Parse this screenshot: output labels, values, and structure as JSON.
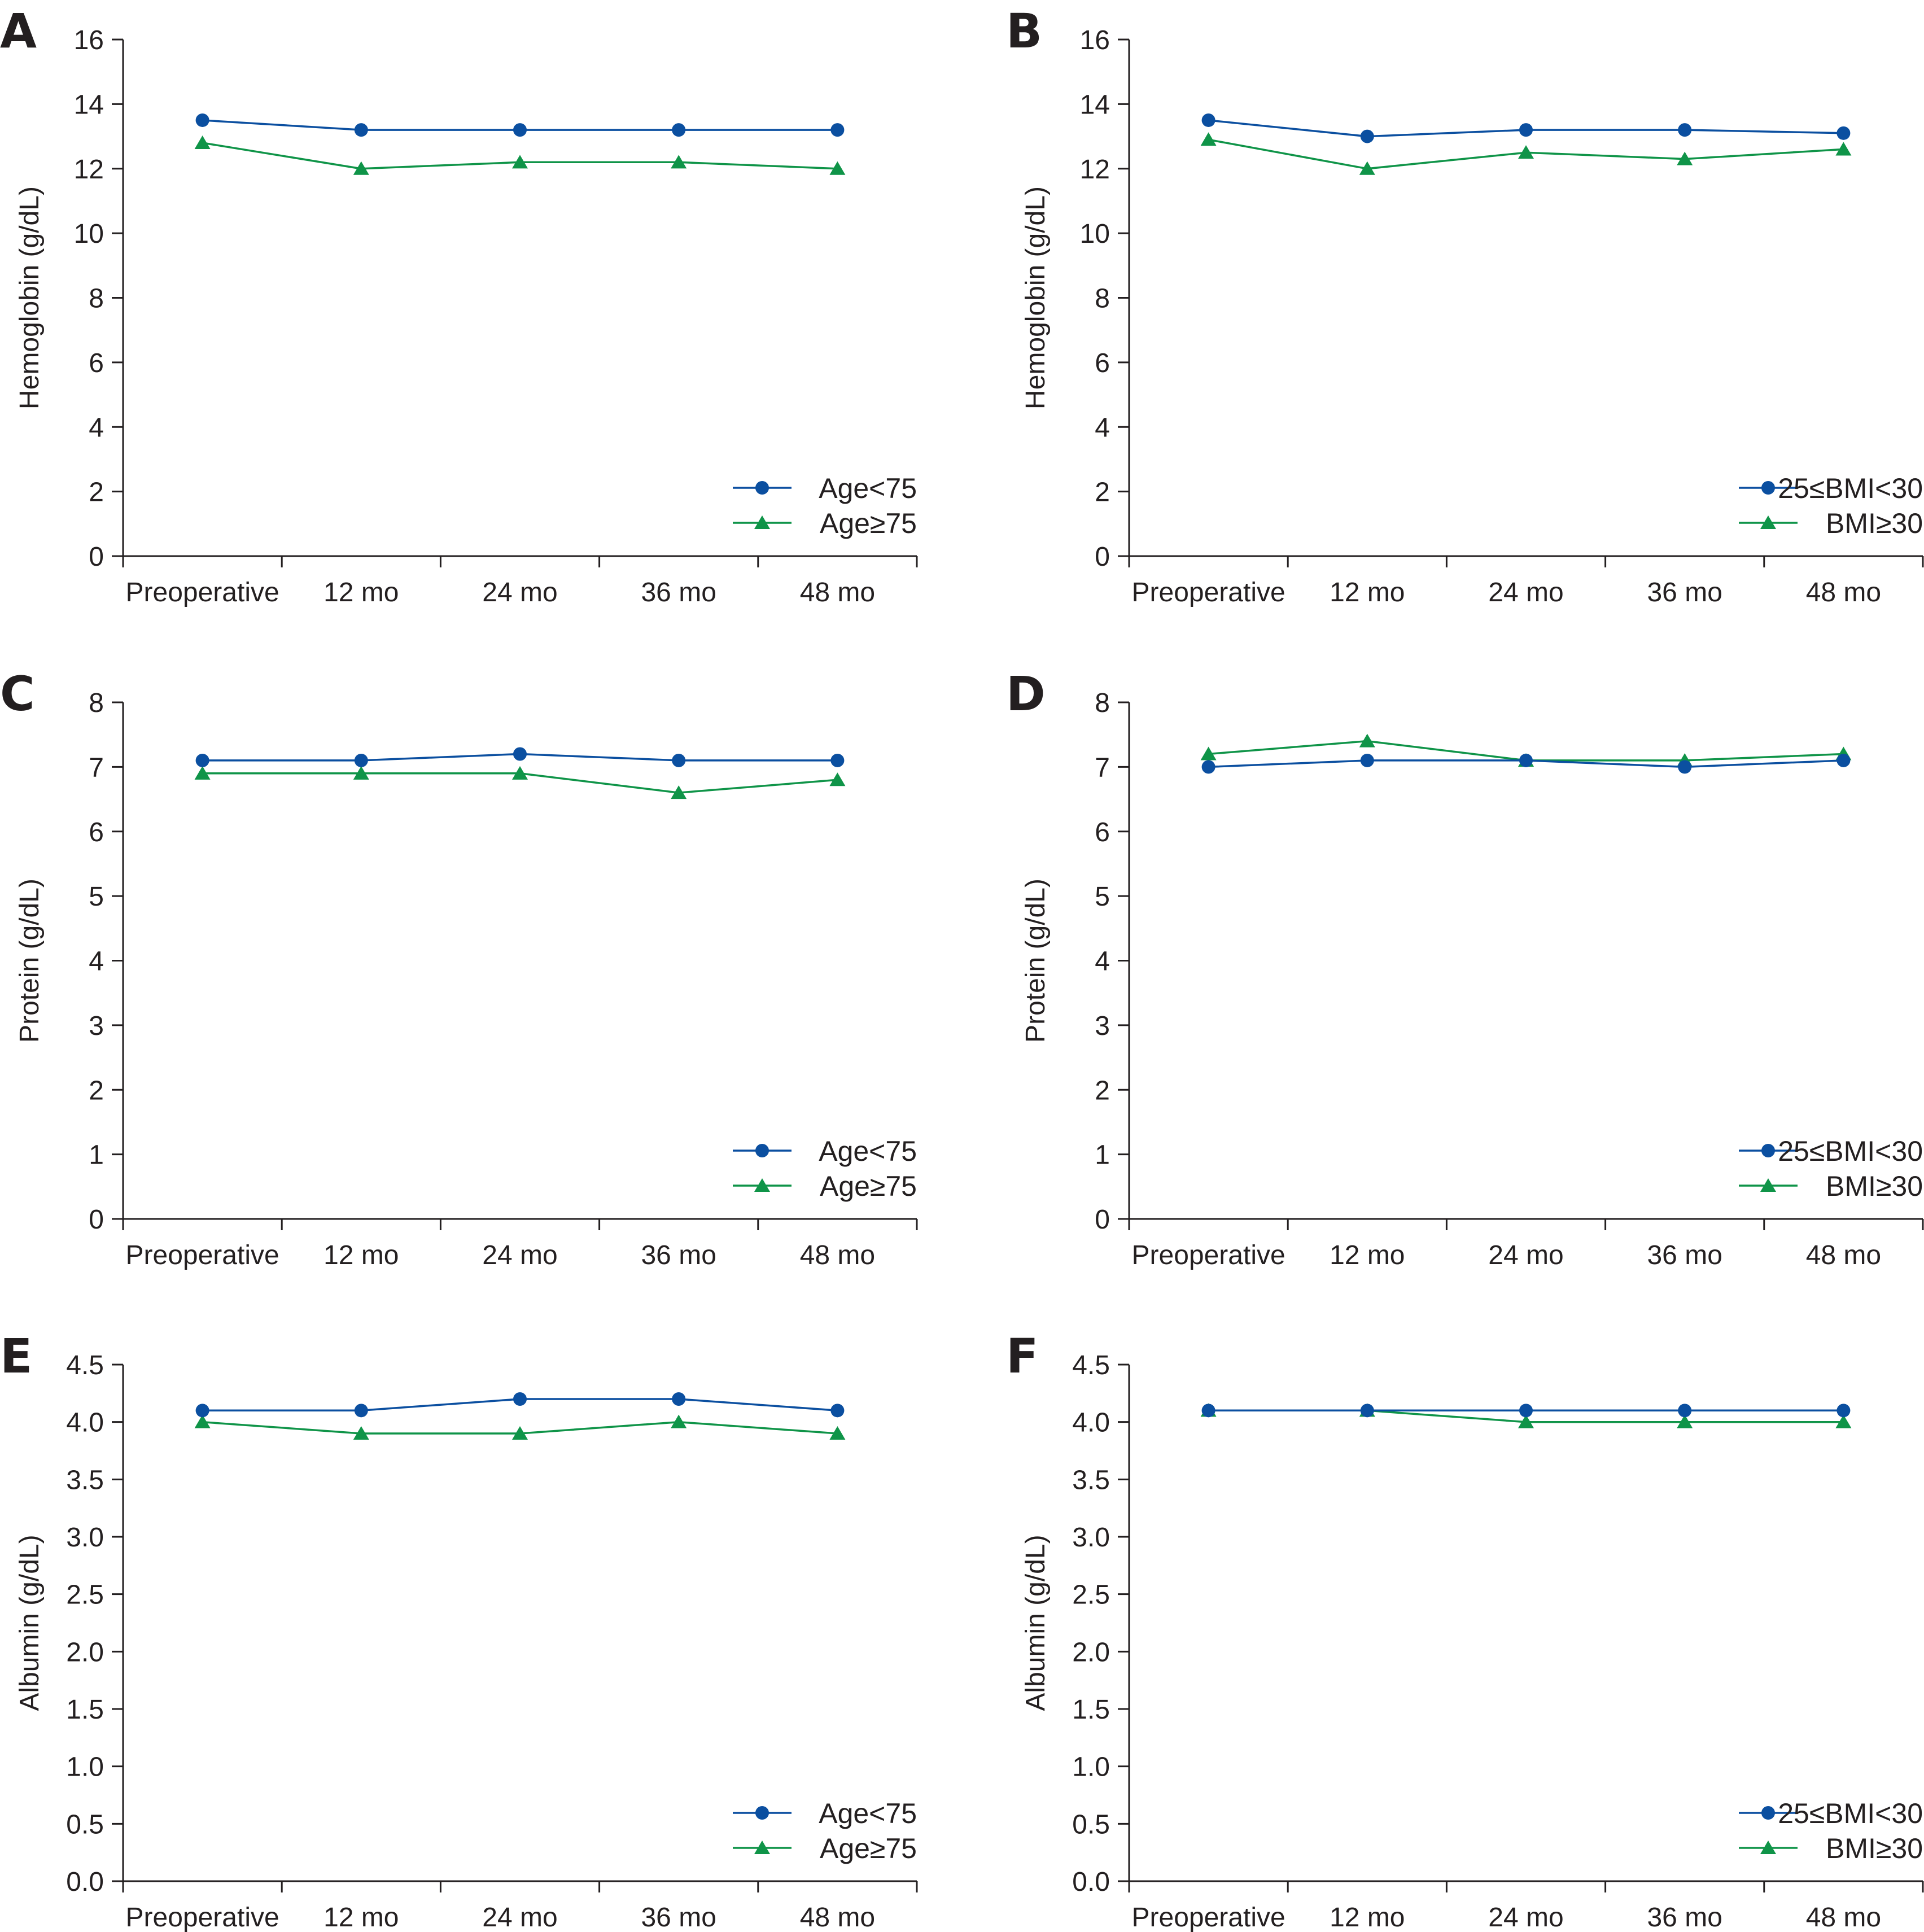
{
  "colors": {
    "series1": "#0b4fa0",
    "series2": "#0f9448",
    "axis": "#231f20"
  },
  "chart_data": [
    {
      "panel": "A",
      "type": "line",
      "categories": [
        "Preoperative",
        "12 mo",
        "24 mo",
        "36 mo",
        "48 mo"
      ],
      "ylabel": "Hemoglobin (g/dL)",
      "ylim": [
        0,
        16
      ],
      "yticks": [
        0,
        2,
        4,
        6,
        8,
        10,
        12,
        14,
        16
      ],
      "series": [
        {
          "name": "Age<75",
          "marker": "circle",
          "values": [
            13.5,
            13.2,
            13.2,
            13.2,
            13.2
          ]
        },
        {
          "name": "Age≥75",
          "marker": "triangle",
          "values": [
            12.8,
            12.0,
            12.2,
            12.2,
            12.0
          ]
        }
      ]
    },
    {
      "panel": "B",
      "type": "line",
      "categories": [
        "Preoperative",
        "12 mo",
        "24 mo",
        "36 mo",
        "48 mo"
      ],
      "ylabel": "Hemoglobin (g/dL)",
      "ylim": [
        0,
        16
      ],
      "yticks": [
        0,
        2,
        4,
        6,
        8,
        10,
        12,
        14,
        16
      ],
      "series": [
        {
          "name": "25≤BMI<30",
          "marker": "circle",
          "values": [
            13.5,
            13.0,
            13.2,
            13.2,
            13.1
          ]
        },
        {
          "name": "BMI≥30",
          "marker": "triangle",
          "values": [
            12.9,
            12.0,
            12.5,
            12.3,
            12.6
          ]
        }
      ]
    },
    {
      "panel": "C",
      "type": "line",
      "categories": [
        "Preoperative",
        "12 mo",
        "24 mo",
        "36 mo",
        "48 mo"
      ],
      "ylabel": "Protein (g/dL)",
      "ylim": [
        0,
        8
      ],
      "yticks": [
        0,
        1,
        2,
        3,
        4,
        5,
        6,
        7,
        8
      ],
      "series": [
        {
          "name": "Age<75",
          "marker": "circle",
          "values": [
            7.1,
            7.1,
            7.2,
            7.1,
            7.1
          ]
        },
        {
          "name": "Age≥75",
          "marker": "triangle",
          "values": [
            6.9,
            6.9,
            6.9,
            6.6,
            6.8
          ]
        }
      ]
    },
    {
      "panel": "D",
      "type": "line",
      "categories": [
        "Preoperative",
        "12 mo",
        "24 mo",
        "36 mo",
        "48 mo"
      ],
      "ylabel": "Protein (g/dL)",
      "ylim": [
        0,
        8
      ],
      "yticks": [
        0,
        1,
        2,
        3,
        4,
        5,
        6,
        7,
        8
      ],
      "series": [
        {
          "name": "25≤BMI<30",
          "marker": "circle",
          "values": [
            7.0,
            7.1,
            7.1,
            7.0,
            7.1
          ]
        },
        {
          "name": "BMI≥30",
          "marker": "triangle",
          "values": [
            7.2,
            7.4,
            7.1,
            7.1,
            7.2
          ]
        }
      ]
    },
    {
      "panel": "E",
      "type": "line",
      "categories": [
        "Preoperative",
        "12 mo",
        "24 mo",
        "36 mo",
        "48 mo"
      ],
      "ylabel": "Albumin (g/dL)",
      "ylim": [
        0,
        4.5
      ],
      "yticks": [
        "0.0",
        "0.5",
        "1.0",
        "1.5",
        "2.0",
        "2.5",
        "3.0",
        "3.5",
        "4.0",
        "4.5"
      ],
      "series": [
        {
          "name": "Age<75",
          "marker": "circle",
          "values": [
            4.1,
            4.1,
            4.2,
            4.2,
            4.1
          ]
        },
        {
          "name": "Age≥75",
          "marker": "triangle",
          "values": [
            4.0,
            3.9,
            3.9,
            4.0,
            3.9
          ]
        }
      ]
    },
    {
      "panel": "F",
      "type": "line",
      "categories": [
        "Preoperative",
        "12 mo",
        "24 mo",
        "36 mo",
        "48 mo"
      ],
      "ylabel": "Albumin (g/dL)",
      "ylim": [
        0,
        4.5
      ],
      "yticks": [
        "0.0",
        "0.5",
        "1.0",
        "1.5",
        "2.0",
        "2.5",
        "3.0",
        "3.5",
        "4.0",
        "4.5"
      ],
      "series": [
        {
          "name": "25≤BMI<30",
          "marker": "circle",
          "values": [
            4.1,
            4.1,
            4.1,
            4.1,
            4.1
          ]
        },
        {
          "name": "BMI≥30",
          "marker": "triangle",
          "values": [
            4.1,
            4.1,
            4.0,
            4.0,
            4.0
          ]
        }
      ]
    }
  ]
}
